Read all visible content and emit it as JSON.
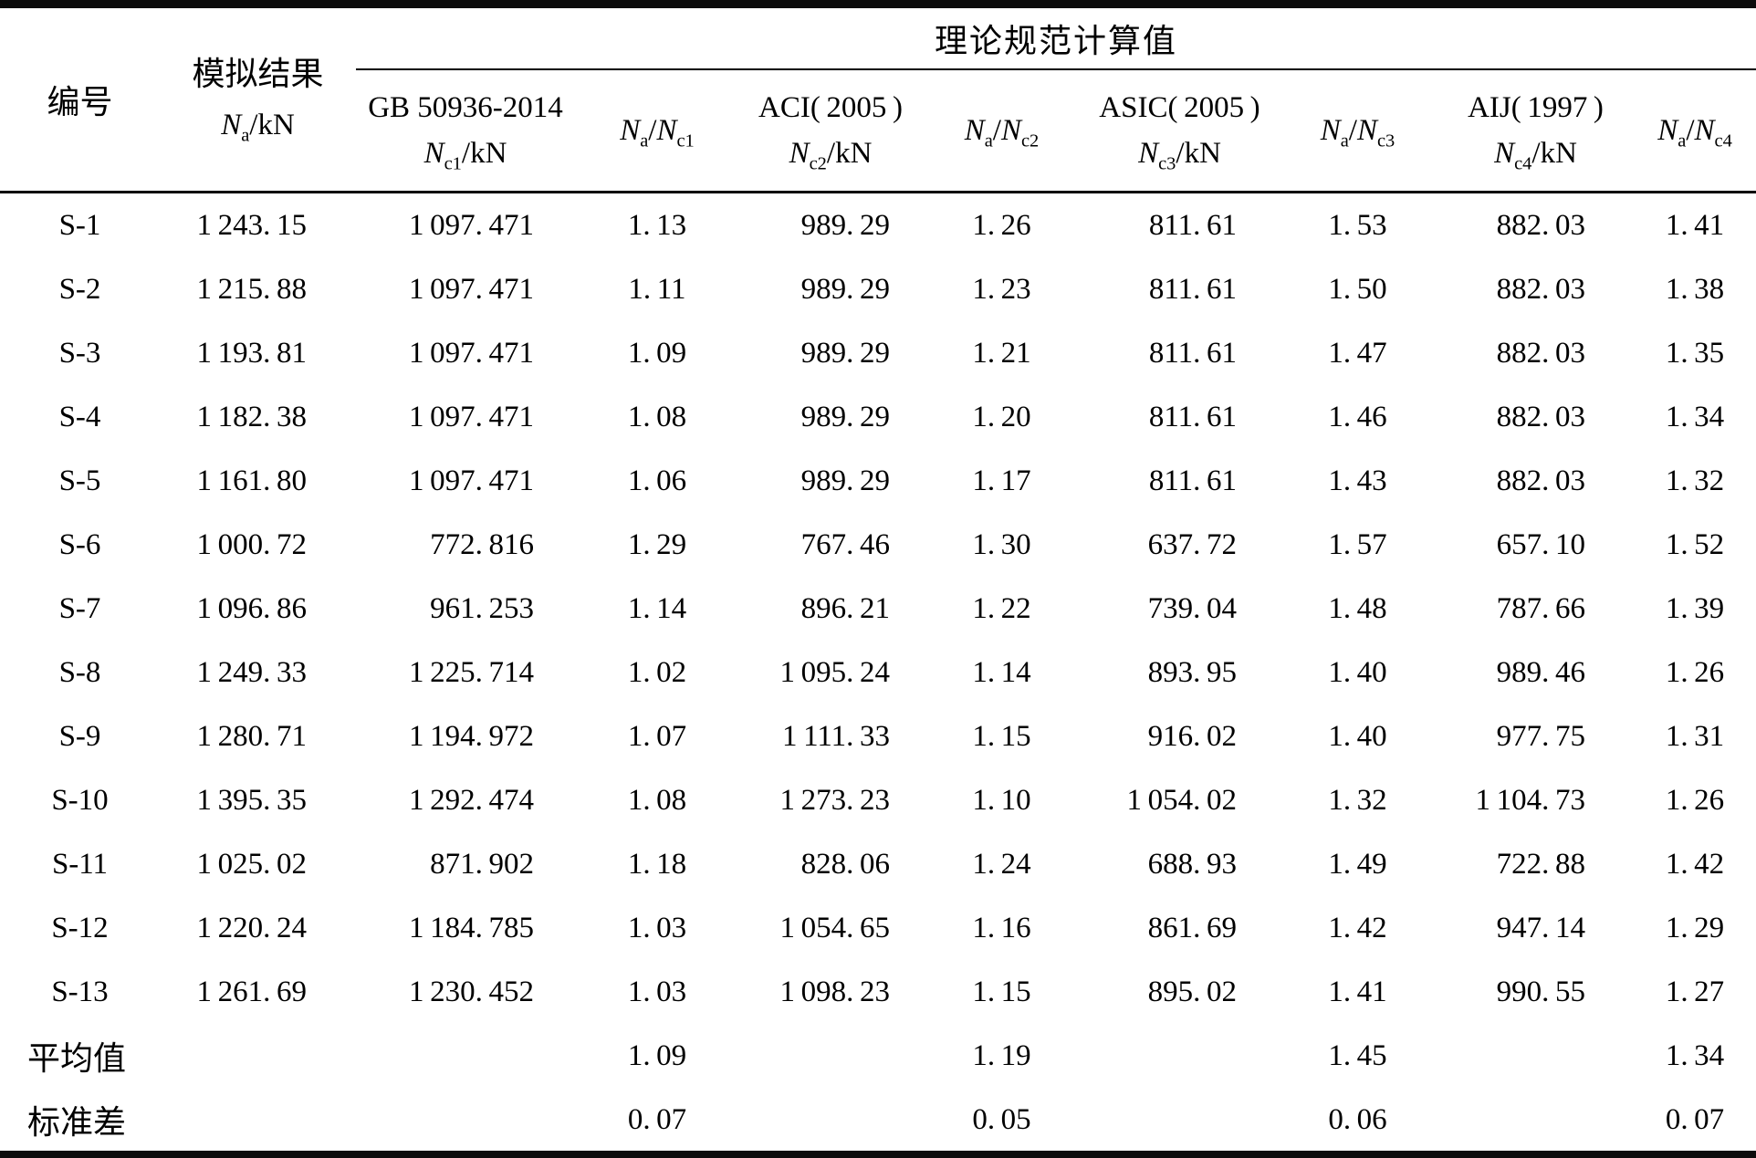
{
  "table": {
    "header": {
      "id_label": "编号",
      "sim_title": "模拟结果",
      "sim_symbol": [
        [
          "i",
          "N"
        ],
        [
          "sub",
          "a"
        ],
        [
          "n",
          "/kN"
        ]
      ],
      "theory_span_label": "理论规范计算值",
      "groups": [
        {
          "code": "GB 50936-2014",
          "symbol": [
            [
              "i",
              "N"
            ],
            [
              "sub",
              "c1"
            ],
            [
              "n",
              "/kN"
            ]
          ],
          "ratio": [
            [
              "i",
              "N"
            ],
            [
              "sub",
              "a"
            ],
            [
              "n",
              "/"
            ],
            [
              "i",
              "N"
            ],
            [
              "sub",
              "c1"
            ]
          ]
        },
        {
          "code": "ACI( 2005 )",
          "symbol": [
            [
              "i",
              "N"
            ],
            [
              "sub",
              "c2"
            ],
            [
              "n",
              "/kN"
            ]
          ],
          "ratio": [
            [
              "i",
              "N"
            ],
            [
              "sub",
              "a"
            ],
            [
              "n",
              "/"
            ],
            [
              "i",
              "N"
            ],
            [
              "sub",
              "c2"
            ]
          ]
        },
        {
          "code": "ASIC( 2005 )",
          "symbol": [
            [
              "i",
              "N"
            ],
            [
              "sub",
              "c3"
            ],
            [
              "n",
              "/kN"
            ]
          ],
          "ratio": [
            [
              "i",
              "N"
            ],
            [
              "sub",
              "a"
            ],
            [
              "n",
              "/"
            ],
            [
              "i",
              "N"
            ],
            [
              "sub",
              "c3"
            ]
          ]
        },
        {
          "code": "AIJ( 1997 )",
          "symbol": [
            [
              "i",
              "N"
            ],
            [
              "sub",
              "c4"
            ],
            [
              "n",
              "/kN"
            ]
          ],
          "ratio": [
            [
              "i",
              "N"
            ],
            [
              "sub",
              "a"
            ],
            [
              "n",
              "/"
            ],
            [
              "i",
              "N"
            ],
            [
              "sub",
              "c4"
            ]
          ]
        }
      ]
    },
    "rows": [
      {
        "id": "S-1",
        "cells": [
          "1 243. 15",
          "1 097. 471",
          "1. 13",
          "989. 29",
          "1. 26",
          "811. 61",
          "1. 53",
          "882. 03",
          "1. 41"
        ]
      },
      {
        "id": "S-2",
        "cells": [
          "1 215. 88",
          "1 097. 471",
          "1. 11",
          "989. 29",
          "1. 23",
          "811. 61",
          "1. 50",
          "882. 03",
          "1. 38"
        ]
      },
      {
        "id": "S-3",
        "cells": [
          "1 193. 81",
          "1 097. 471",
          "1. 09",
          "989. 29",
          "1. 21",
          "811. 61",
          "1. 47",
          "882. 03",
          "1. 35"
        ]
      },
      {
        "id": "S-4",
        "cells": [
          "1 182. 38",
          "1 097. 471",
          "1. 08",
          "989. 29",
          "1. 20",
          "811. 61",
          "1. 46",
          "882. 03",
          "1. 34"
        ]
      },
      {
        "id": "S-5",
        "cells": [
          "1 161. 80",
          "1 097. 471",
          "1. 06",
          "989. 29",
          "1. 17",
          "811. 61",
          "1. 43",
          "882. 03",
          "1. 32"
        ]
      },
      {
        "id": "S-6",
        "cells": [
          "1 000. 72",
          "772. 816",
          "1. 29",
          "767. 46",
          "1. 30",
          "637. 72",
          "1. 57",
          "657. 10",
          "1. 52"
        ]
      },
      {
        "id": "S-7",
        "cells": [
          "1 096. 86",
          "961. 253",
          "1. 14",
          "896. 21",
          "1. 22",
          "739. 04",
          "1. 48",
          "787. 66",
          "1. 39"
        ]
      },
      {
        "id": "S-8",
        "cells": [
          "1 249. 33",
          "1 225. 714",
          "1. 02",
          "1 095. 24",
          "1. 14",
          "893. 95",
          "1. 40",
          "989. 46",
          "1. 26"
        ]
      },
      {
        "id": "S-9",
        "cells": [
          "1 280. 71",
          "1 194. 972",
          "1. 07",
          "1 111. 33",
          "1. 15",
          "916. 02",
          "1. 40",
          "977. 75",
          "1. 31"
        ]
      },
      {
        "id": "S-10",
        "cells": [
          "1 395. 35",
          "1 292. 474",
          "1. 08",
          "1 273. 23",
          "1. 10",
          "1 054. 02",
          "1. 32",
          "1 104. 73",
          "1. 26"
        ]
      },
      {
        "id": "S-11",
        "cells": [
          "1 025. 02",
          "871. 902",
          "1. 18",
          "828. 06",
          "1. 24",
          "688. 93",
          "1. 49",
          "722. 88",
          "1. 42"
        ]
      },
      {
        "id": "S-12",
        "cells": [
          "1 220. 24",
          "1 184. 785",
          "1. 03",
          "1 054. 65",
          "1. 16",
          "861. 69",
          "1. 42",
          "947. 14",
          "1. 29"
        ]
      },
      {
        "id": "S-13",
        "cells": [
          "1 261. 69",
          "1 230. 452",
          "1. 03",
          "1 098. 23",
          "1. 15",
          "895. 02",
          "1. 41",
          "990. 55",
          "1. 27"
        ]
      }
    ],
    "summary_rows": [
      {
        "id": "平均值",
        "cells": [
          "",
          "",
          "1. 09",
          "",
          "1. 19",
          "",
          "1. 45",
          "",
          "1. 34"
        ]
      },
      {
        "id": "标准差",
        "cells": [
          "",
          "",
          "0. 07",
          "",
          "0. 05",
          "",
          "0. 06",
          "",
          "0. 07"
        ]
      }
    ]
  }
}
